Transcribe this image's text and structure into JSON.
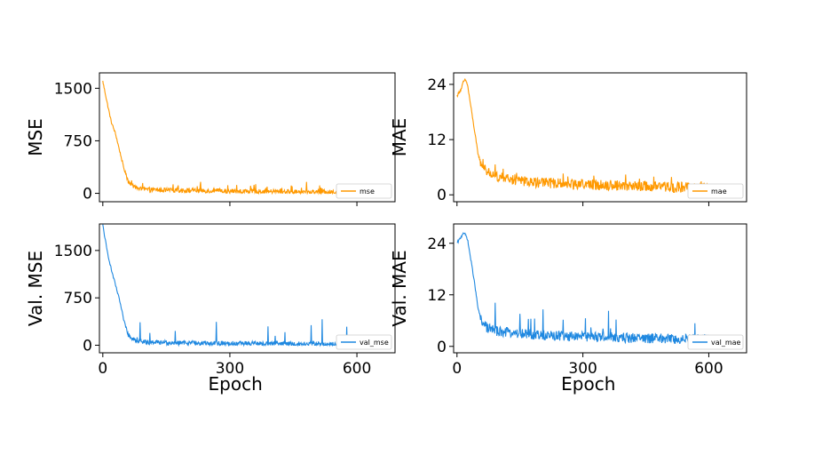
{
  "chart_data": [
    {
      "type": "line",
      "ylabel": "MSE",
      "xlabel": "",
      "x_ticks": [
        "0",
        "300",
        "600"
      ],
      "y_ticks": [
        "0",
        "750",
        "1500"
      ],
      "xlim": [
        -8,
        690
      ],
      "ylim": [
        -120,
        1720
      ],
      "legend": "mse",
      "legend_position": "bottom-right",
      "color": "#ff9900",
      "series": [
        {
          "name": "mse",
          "values": [
            [
              0,
              1600
            ],
            [
              10,
              1300
            ],
            [
              20,
              1020
            ],
            [
              30,
              850
            ],
            [
              40,
              600
            ],
            [
              50,
              350
            ],
            [
              60,
              180
            ],
            [
              70,
              110
            ],
            [
              80,
              80
            ],
            [
              90,
              60
            ],
            [
              100,
              55
            ],
            [
              120,
              50
            ],
            [
              150,
              45
            ],
            [
              200,
              40
            ],
            [
              300,
              30
            ],
            [
              400,
              25
            ],
            [
              500,
              20
            ],
            [
              600,
              15
            ]
          ]
        }
      ]
    },
    {
      "type": "line",
      "ylabel": "MAE",
      "xlabel": "",
      "x_ticks": [
        "0",
        "300",
        "600"
      ],
      "y_ticks": [
        "0",
        "12",
        "24"
      ],
      "xlim": [
        -8,
        690
      ],
      "ylim": [
        -1.5,
        26.5
      ],
      "legend": "mae",
      "legend_position": "bottom-right",
      "color": "#ff9900",
      "series": [
        {
          "name": "mae",
          "values": [
            [
              0,
              21.5
            ],
            [
              10,
              23
            ],
            [
              15,
              24.5
            ],
            [
              20,
              25
            ],
            [
              25,
              24
            ],
            [
              30,
              21
            ],
            [
              40,
              15
            ],
            [
              50,
              9
            ],
            [
              60,
              6
            ],
            [
              80,
              4.5
            ],
            [
              100,
              3.8
            ],
            [
              150,
              3
            ],
            [
              200,
              2.6
            ],
            [
              300,
              2.3
            ],
            [
              400,
              2
            ],
            [
              500,
              1.7
            ],
            [
              600,
              1.5
            ]
          ]
        }
      ]
    },
    {
      "type": "line",
      "ylabel": "Val. MSE",
      "xlabel": "Epoch",
      "x_ticks": [
        "0",
        "300",
        "600"
      ],
      "y_ticks": [
        "0",
        "750",
        "1500"
      ],
      "xlim": [
        -8,
        690
      ],
      "ylim": [
        -120,
        1920
      ],
      "legend": "val_mse",
      "legend_position": "bottom-right",
      "color": "#1f88e0",
      "series": [
        {
          "name": "val_mse",
          "values": [
            [
              0,
              1900
            ],
            [
              10,
              1500
            ],
            [
              20,
              1200
            ],
            [
              30,
              950
            ],
            [
              40,
              700
            ],
            [
              50,
              380
            ],
            [
              60,
              180
            ],
            [
              70,
              110
            ],
            [
              80,
              80
            ],
            [
              90,
              60
            ],
            [
              100,
              50
            ],
            [
              150,
              40
            ],
            [
              200,
              35
            ],
            [
              300,
              28
            ],
            [
              400,
              22
            ],
            [
              500,
              18
            ],
            [
              600,
              15
            ]
          ]
        }
      ]
    },
    {
      "type": "line",
      "ylabel": "Val. MAE",
      "xlabel": "Epoch",
      "x_ticks": [
        "0",
        "300",
        "600"
      ],
      "y_ticks": [
        "0",
        "12",
        "24"
      ],
      "xlim": [
        -8,
        690
      ],
      "ylim": [
        -1.5,
        28.5
      ],
      "legend": "val_mae",
      "legend_position": "bottom-right",
      "color": "#1f88e0",
      "series": [
        {
          "name": "val_mae",
          "values": [
            [
              0,
              24
            ],
            [
              10,
              25.5
            ],
            [
              15,
              26.5
            ],
            [
              20,
              26
            ],
            [
              25,
              25
            ],
            [
              30,
              22
            ],
            [
              40,
              16
            ],
            [
              50,
              9
            ],
            [
              60,
              5
            ],
            [
              80,
              4
            ],
            [
              100,
              3.5
            ],
            [
              150,
              3
            ],
            [
              200,
              2.6
            ],
            [
              300,
              2.3
            ],
            [
              400,
              2
            ],
            [
              500,
              1.8
            ],
            [
              600,
              1.6
            ]
          ]
        }
      ]
    }
  ]
}
